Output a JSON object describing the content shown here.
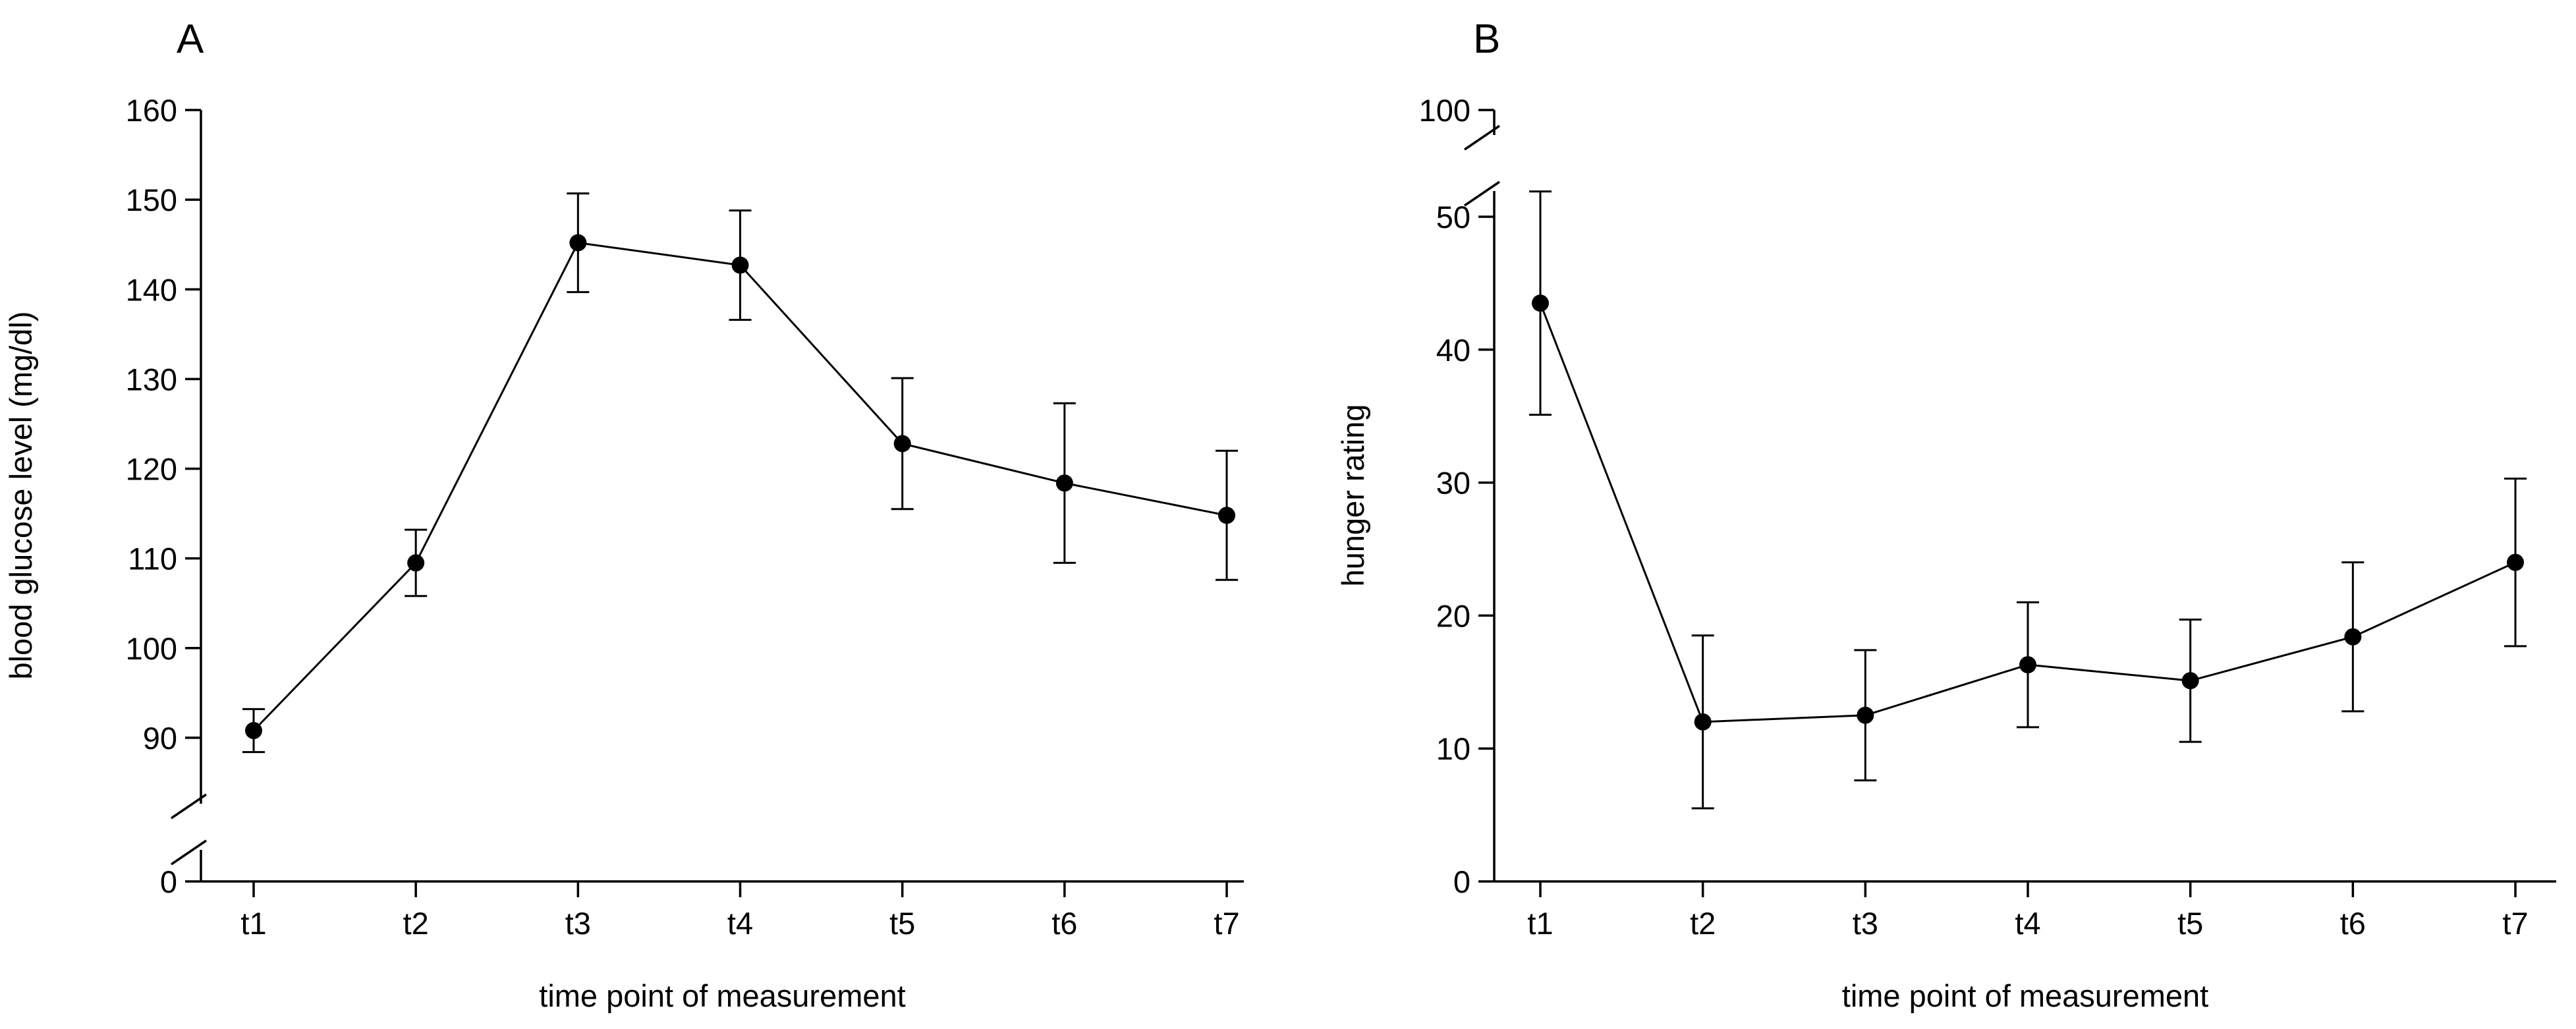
{
  "chart_data": [
    {
      "type": "line",
      "panel_label": "A",
      "title": "",
      "xlabel": "time point of measurement",
      "ylabel": "blood glucose level (mg/dl)",
      "categories": [
        "t1",
        "t2",
        "t3",
        "t4",
        "t5",
        "t6",
        "t7"
      ],
      "series": [
        {
          "name": "blood glucose level",
          "values": [
            90.8,
            109.5,
            145.2,
            142.7,
            122.8,
            118.4,
            114.8
          ],
          "error": [
            2.4,
            3.7,
            5.5,
            6.1,
            7.3,
            8.9,
            7.2
          ]
        }
      ],
      "y_break": {
        "lower_tick": "0",
        "lower_tick_value": 0,
        "axis_start": 80
      },
      "ylim": [
        80,
        160
      ],
      "yticks": [
        {
          "value": 90,
          "label": "90"
        },
        {
          "value": 100,
          "label": "100"
        },
        {
          "value": 110,
          "label": "110"
        },
        {
          "value": 120,
          "label": "120"
        },
        {
          "value": 130,
          "label": "130"
        },
        {
          "value": 140,
          "label": "140"
        },
        {
          "value": 150,
          "label": "150"
        },
        {
          "value": 160,
          "label": "160"
        }
      ],
      "grid": false,
      "legend": "none"
    },
    {
      "type": "line",
      "panel_label": "B",
      "title": "",
      "xlabel": "time point of measurement",
      "ylabel": "hunger rating",
      "categories": [
        "t1",
        "t2",
        "t3",
        "t4",
        "t5",
        "t6",
        "t7"
      ],
      "series": [
        {
          "name": "hunger rating",
          "values": [
            43.5,
            12.0,
            12.5,
            16.3,
            15.1,
            18.4,
            24.0
          ],
          "error": [
            8.4,
            6.5,
            4.9,
            4.7,
            4.6,
            5.6,
            6.3
          ]
        }
      ],
      "y_break": {
        "upper_tick": "100",
        "upper_tick_value": 100,
        "axis_end": 50
      },
      "ylim": [
        0,
        50
      ],
      "yticks": [
        {
          "value": 0,
          "label": "0"
        },
        {
          "value": 10,
          "label": "10"
        },
        {
          "value": 20,
          "label": "20"
        },
        {
          "value": 30,
          "label": "30"
        },
        {
          "value": 40,
          "label": "40"
        },
        {
          "value": 50,
          "label": "50"
        }
      ],
      "grid": false,
      "legend": "none"
    }
  ]
}
